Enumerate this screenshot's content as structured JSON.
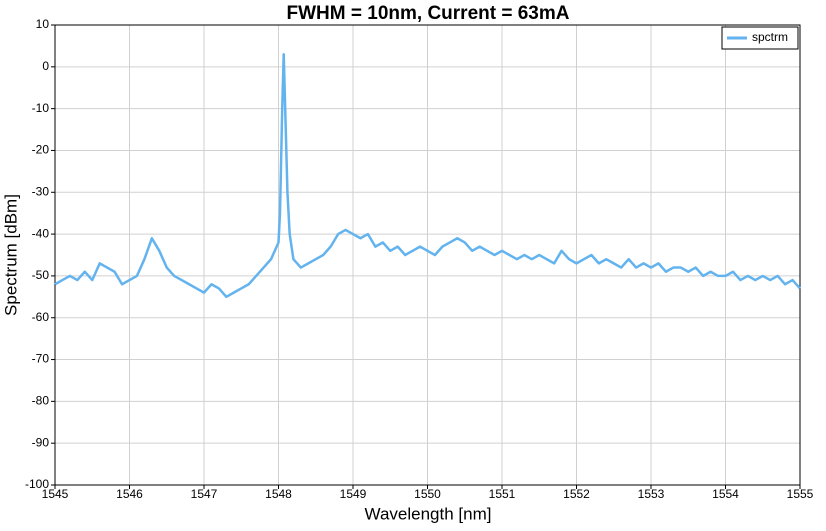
{
  "chart_data": {
    "type": "line",
    "title": "FWHM = 10nm, Current = 63mA",
    "x_label": "Wavelength [nm]",
    "y_label": "Spectrum [dBm]",
    "x": [
      1545.0,
      1545.1,
      1545.2,
      1545.3,
      1545.4,
      1545.5,
      1545.6,
      1545.7,
      1545.8,
      1545.9,
      1546.0,
      1546.1,
      1546.2,
      1546.3,
      1546.4,
      1546.5,
      1546.6,
      1546.7,
      1546.8,
      1546.9,
      1547.0,
      1547.1,
      1547.2,
      1547.3,
      1547.4,
      1547.5,
      1547.6,
      1547.7,
      1547.8,
      1547.9,
      1548.0,
      1548.02,
      1548.05,
      1548.07,
      1548.09,
      1548.12,
      1548.15,
      1548.2,
      1548.3,
      1548.4,
      1548.5,
      1548.6,
      1548.7,
      1548.8,
      1548.9,
      1549.0,
      1549.1,
      1549.2,
      1549.3,
      1549.4,
      1549.5,
      1549.6,
      1549.7,
      1549.8,
      1549.9,
      1550.0,
      1550.1,
      1550.2,
      1550.3,
      1550.4,
      1550.5,
      1550.6,
      1550.7,
      1550.8,
      1550.9,
      1551.0,
      1551.1,
      1551.2,
      1551.3,
      1551.4,
      1551.5,
      1551.6,
      1551.7,
      1551.8,
      1551.9,
      1552.0,
      1552.1,
      1552.2,
      1552.3,
      1552.4,
      1552.5,
      1552.6,
      1552.7,
      1552.8,
      1552.9,
      1553.0,
      1553.1,
      1553.2,
      1553.3,
      1553.4,
      1553.5,
      1553.6,
      1553.7,
      1553.8,
      1553.9,
      1554.0,
      1554.1,
      1554.2,
      1554.3,
      1554.4,
      1554.5,
      1554.6,
      1554.7,
      1554.8,
      1554.9,
      1555.0
    ],
    "series": [
      {
        "name": "spctrm",
        "color": "#63b3ef",
        "values": [
          -52,
          -51,
          -50,
          -51,
          -49,
          -51,
          -47,
          -48,
          -49,
          -52,
          -51,
          -50,
          -46,
          -41,
          -44,
          -48,
          -50,
          -51,
          -52,
          -53,
          -54,
          -52,
          -53,
          -55,
          -54,
          -53,
          -52,
          -50,
          -48,
          -46,
          -42,
          -35,
          -10,
          3,
          -10,
          -30,
          -40,
          -46,
          -48,
          -47,
          -46,
          -45,
          -43,
          -40,
          -39,
          -40,
          -41,
          -40,
          -43,
          -42,
          -44,
          -43,
          -45,
          -44,
          -43,
          -44,
          -45,
          -43,
          -42,
          -41,
          -42,
          -44,
          -43,
          -44,
          -45,
          -44,
          -45,
          -46,
          -45,
          -46,
          -45,
          -46,
          -47,
          -44,
          -46,
          -47,
          -46,
          -45,
          -47,
          -46,
          -47,
          -48,
          -46,
          -48,
          -47,
          -48,
          -47,
          -49,
          -48,
          -48,
          -49,
          -48,
          -50,
          -49,
          -50,
          -50,
          -49,
          -51,
          -50,
          -51,
          -50,
          -51,
          -50,
          -52,
          -51,
          -53
        ]
      }
    ],
    "xlim": [
      1545,
      1555
    ],
    "xticks": [
      1545,
      1546,
      1547,
      1548,
      1549,
      1550,
      1551,
      1552,
      1553,
      1554,
      1555
    ],
    "ylim": [
      -100,
      10
    ],
    "yticks": [
      -100,
      -90,
      -80,
      -70,
      -60,
      -50,
      -40,
      -30,
      -20,
      -10,
      0,
      10
    ],
    "grid": true,
    "legend": "upper right"
  }
}
